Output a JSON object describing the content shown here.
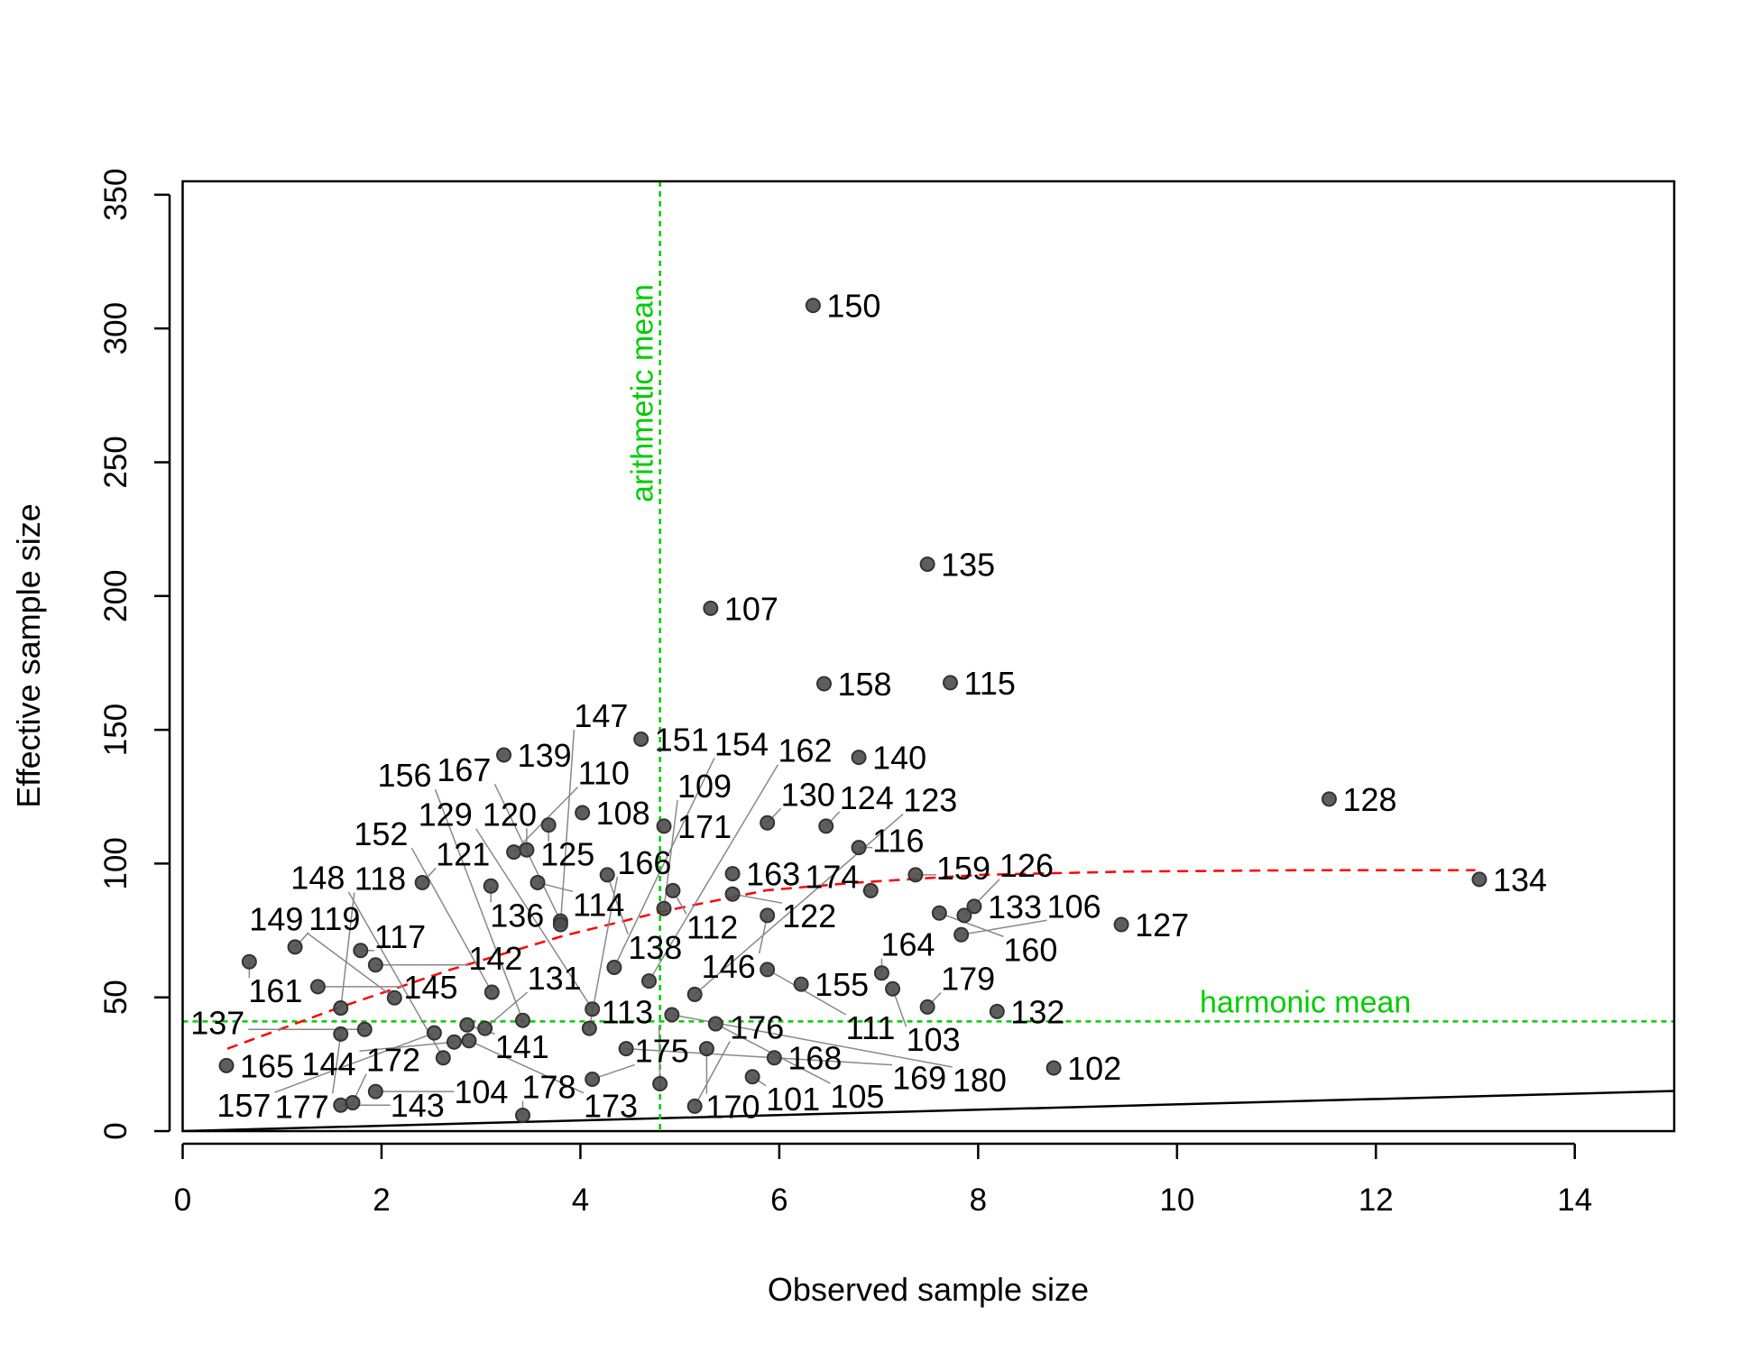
{
  "chart_data": {
    "type": "scatter",
    "title": "",
    "xlabel": "Observed sample size",
    "ylabel": "Effective sample size",
    "xlim": [
      0,
      15
    ],
    "ylim": [
      0,
      355
    ],
    "xticks": [
      0,
      2,
      4,
      6,
      8,
      10,
      12,
      14
    ],
    "yticks": [
      0,
      50,
      100,
      150,
      200,
      250,
      300,
      350
    ],
    "grid": false,
    "point_color": "#4d4d4d",
    "points": [
      {
        "label": "150",
        "x": 6.34,
        "y": 308.6
      },
      {
        "label": "135",
        "x": 7.49,
        "y": 211.9
      },
      {
        "label": "107",
        "x": 5.31,
        "y": 195.4
      },
      {
        "label": "158",
        "x": 6.45,
        "y": 167.2
      },
      {
        "label": "115",
        "x": 7.72,
        "y": 167.6
      },
      {
        "label": "151",
        "x": 4.61,
        "y": 146.5
      },
      {
        "label": "139",
        "x": 3.23,
        "y": 140.6
      },
      {
        "label": "140",
        "x": 6.8,
        "y": 139.7
      },
      {
        "label": "128",
        "x": 11.53,
        "y": 124.1
      },
      {
        "label": "108",
        "x": 4.02,
        "y": 119.0
      },
      {
        "label": "125",
        "x": 3.68,
        "y": 114.4
      },
      {
        "label": "171",
        "x": 4.84,
        "y": 114.0
      },
      {
        "label": "130",
        "x": 5.88,
        "y": 115.2
      },
      {
        "label": "124",
        "x": 6.47,
        "y": 114.0
      },
      {
        "label": "116",
        "x": 6.8,
        "y": 106.0
      },
      {
        "label": "110",
        "x": 3.33,
        "y": 104.3
      },
      {
        "label": "120",
        "x": 3.46,
        "y": 105.1
      },
      {
        "label": "121",
        "x": 2.41,
        "y": 92.9
      },
      {
        "label": "136",
        "x": 3.1,
        "y": 91.6
      },
      {
        "label": "114",
        "x": 3.57,
        "y": 92.9
      },
      {
        "label": "138",
        "x": 4.27,
        "y": 95.8
      },
      {
        "label": "112",
        "x": 4.93,
        "y": 89.9
      },
      {
        "label": "163",
        "x": 5.53,
        "y": 96.2
      },
      {
        "label": "122",
        "x": 5.53,
        "y": 88.6
      },
      {
        "label": "109",
        "x": 4.84,
        "y": 83.2
      },
      {
        "label": "146",
        "x": 5.88,
        "y": 80.6
      },
      {
        "label": "174",
        "x": 6.92,
        "y": 89.9
      },
      {
        "label": "159",
        "x": 7.37,
        "y": 95.8
      },
      {
        "label": "134",
        "x": 13.04,
        "y": 94.1
      },
      {
        "label": "127",
        "x": 9.44,
        "y": 77.2
      },
      {
        "label": "133",
        "x": 7.96,
        "y": 84.0
      },
      {
        "label": "160",
        "x": 7.61,
        "y": 81.5
      },
      {
        "label": "126",
        "x": 7.86,
        "y": 80.6
      },
      {
        "label": "106",
        "x": 7.83,
        "y": 73.4
      },
      {
        "label": "167",
        "x": 3.8,
        "y": 78.5
      },
      {
        "label": "147",
        "x": 3.8,
        "y": 77.2
      },
      {
        "label": "154",
        "x": 4.34,
        "y": 61.2
      },
      {
        "label": "111",
        "x": 5.88,
        "y": 60.4
      },
      {
        "label": "164",
        "x": 7.03,
        "y": 59.1
      },
      {
        "label": "155",
        "x": 6.22,
        "y": 54.9
      },
      {
        "label": "103",
        "x": 7.14,
        "y": 53.2
      },
      {
        "label": "179",
        "x": 7.49,
        "y": 46.4
      },
      {
        "label": "132",
        "x": 8.19,
        "y": 44.7
      },
      {
        "label": "102",
        "x": 8.76,
        "y": 23.6
      },
      {
        "label": "161",
        "x": 0.67,
        "y": 63.3
      },
      {
        "label": "119",
        "x": 1.13,
        "y": 68.8
      },
      {
        "label": "117",
        "x": 1.79,
        "y": 67.5
      },
      {
        "label": "142",
        "x": 1.94,
        "y": 62.1
      },
      {
        "label": "145",
        "x": 1.36,
        "y": 54.0
      },
      {
        "label": "118",
        "x": 1.59,
        "y": 46.0
      },
      {
        "label": "149",
        "x": 2.13,
        "y": 49.8
      },
      {
        "label": "177",
        "x": 1.59,
        "y": 36.3
      },
      {
        "label": "137",
        "x": 1.83,
        "y": 38.0
      },
      {
        "label": "157",
        "x": 2.53,
        "y": 36.7
      },
      {
        "label": "141",
        "x": 2.86,
        "y": 39.7
      },
      {
        "label": "144",
        "x": 2.73,
        "y": 33.3
      },
      {
        "label": "173",
        "x": 2.88,
        "y": 33.8
      },
      {
        "label": "131",
        "x": 3.04,
        "y": 38.4
      },
      {
        "label": "156",
        "x": 3.42,
        "y": 41.4
      },
      {
        "label": "148",
        "x": 2.62,
        "y": 27.4
      },
      {
        "label": "165",
        "x": 0.44,
        "y": 24.5
      },
      {
        "label": "104",
        "x": 1.94,
        "y": 14.8
      },
      {
        "label": "143",
        "x": 1.59,
        "y": 9.7
      },
      {
        "label": "172",
        "x": 1.71,
        "y": 10.6
      },
      {
        "label": "178",
        "x": 3.42,
        "y": 5.9
      },
      {
        "label": "152",
        "x": 3.11,
        "y": 51.9
      },
      {
        "label": "162",
        "x": 4.69,
        "y": 56.1
      },
      {
        "label": "123",
        "x": 5.15,
        "y": 51.1
      },
      {
        "label": "129",
        "x": 4.12,
        "y": 45.6
      },
      {
        "label": "180",
        "x": 4.92,
        "y": 43.5
      },
      {
        "label": "105",
        "x": 5.36,
        "y": 40.1
      },
      {
        "label": "166",
        "x": 4.09,
        "y": 38.4
      },
      {
        "label": "169",
        "x": 4.46,
        "y": 30.8
      },
      {
        "label": "170",
        "x": 5.27,
        "y": 30.8
      },
      {
        "label": "168",
        "x": 5.95,
        "y": 27.4
      },
      {
        "label": "175",
        "x": 4.12,
        "y": 19.4
      },
      {
        "label": "113",
        "x": 4.8,
        "y": 17.7
      },
      {
        "label": "101",
        "x": 5.73,
        "y": 20.3
      },
      {
        "label": "176",
        "x": 5.15,
        "y": 9.3
      }
    ],
    "identity_line": {
      "from": [
        0,
        0
      ],
      "to": [
        15,
        15
      ],
      "color": "#000000"
    },
    "smooth_curve": {
      "color": "#FF0000",
      "x": [
        0.45,
        1.59,
        2.7,
        3.83,
        4.85,
        5.87,
        6.78,
        8.03,
        9.5,
        11.2,
        13.0
      ],
      "y": [
        30.8,
        46.4,
        60.4,
        73.0,
        82.3,
        90.0,
        92.9,
        95.8,
        97.0,
        97.5,
        97.5
      ]
    },
    "reference_lines": {
      "color": "#00CC00",
      "harmonic_mean": {
        "label": "harmonic mean",
        "y": 41.0
      },
      "arithmetic_mean": {
        "label": "arithmetic mean",
        "x": 4.8
      }
    }
  }
}
